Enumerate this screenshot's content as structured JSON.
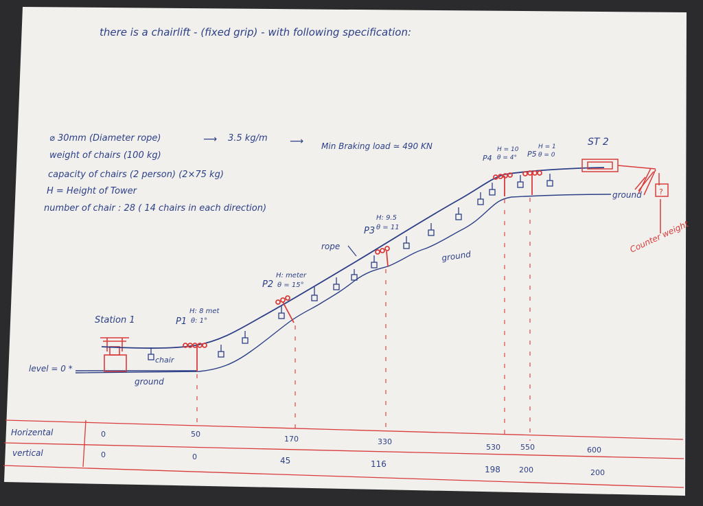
{
  "title": "there is a chairlift - (fixed grip) - with following specification:",
  "specs": {
    "rope": "⌀ 30mm (Diameter rope)",
    "rope_mass": "3.5 kg/m",
    "min_breaking_load": "Min Braking load ≃ 490 KN",
    "weight_of_chairs": "weight of chairs (100 kg)",
    "capacity_of_chairs": "capacity of chairs (2 person) (2×75 kg)",
    "height_definition": "H = Height of Tower",
    "number_of_chair": "number of chair : 28 ( 14 chairs in each direction)"
  },
  "labels": {
    "station1": "Station 1",
    "st2": "ST 2",
    "level": "level = 0 *",
    "chair": "chair",
    "ground_left": "ground",
    "ground_mid": "ground",
    "ground_right": "ground",
    "rope": "rope",
    "counter_weight": "Counter weight",
    "counter_box": "?"
  },
  "towers": [
    {
      "name": "P1",
      "h": "H: 8 met",
      "theta": "θ: 1°"
    },
    {
      "name": "P2",
      "h": "H: meter",
      "theta": "θ = 15°"
    },
    {
      "name": "P3",
      "h": "H: 9.5",
      "theta": "θ = 11"
    },
    {
      "name": "P4",
      "h": "H = 10",
      "theta": "θ = 4°"
    },
    {
      "name": "P5",
      "h": "H = 1",
      "theta": "θ = 0"
    }
  ],
  "table": {
    "row1_label": "Horizental",
    "row2_label": "vertical",
    "horizontal": [
      "0",
      "50",
      "170",
      "330",
      "530",
      "550",
      "600"
    ],
    "vertical": [
      "0",
      "0",
      "45",
      "116",
      "198",
      "200",
      "200"
    ]
  },
  "colors": {
    "paper": "#f1f0ed",
    "ink_blue": "#2c3f86",
    "ink_red": "#d93b3b",
    "background": "#2b2b2e"
  }
}
